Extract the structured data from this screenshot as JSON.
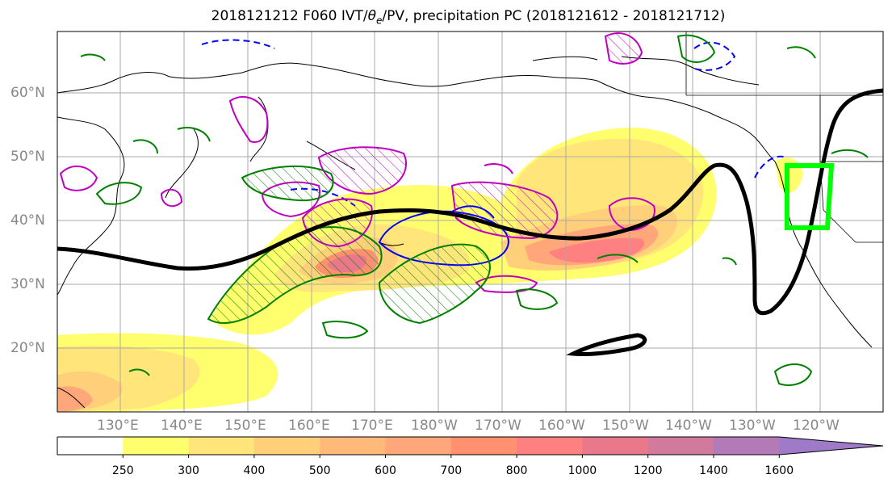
{
  "title": "2018121212 F060 IVT/θe/PV, precipitation PC (2018121612 - 2018121712)",
  "title_parts": {
    "prefix": "2018121212 F060 IVT/",
    "theta": "θ",
    "theta_sub": "e",
    "suffix": "/PV, precipitation PC (2018121612 - 2018121712)"
  },
  "lat_labels": [
    "60°N",
    "50°N",
    "40°N",
    "30°N",
    "20°N"
  ],
  "lon_labels": [
    "130°E",
    "140°E",
    "150°E",
    "160°E",
    "170°E",
    "180°W",
    "170°W",
    "160°W",
    "150°W",
    "140°W",
    "130°W",
    "120°W"
  ],
  "colorbar": {
    "levels": [
      250,
      300,
      400,
      500,
      600,
      700,
      800,
      1000,
      1200,
      1400,
      1600
    ],
    "labels": [
      "250",
      "300",
      "400",
      "500",
      "600",
      "700",
      "800",
      "1000",
      "1200",
      "1400",
      "1600"
    ],
    "colors": [
      "#ffffff",
      "#ffff6e",
      "#ffe57a",
      "#ffcf7a",
      "#ffba7a",
      "#ffa67a",
      "#ff9070",
      "#ff8080",
      "#e9788a",
      "#d17a9e",
      "#b47ab8",
      "#9e7ac8"
    ],
    "extend": "max"
  },
  "map": {
    "projection": "cylindrical",
    "lon_range": [
      "120°E",
      "115°W"
    ],
    "lat_range": [
      "10°N",
      "70°N"
    ],
    "grid": true,
    "land_color": "#ffffff",
    "coast_color": "#000000",
    "target_box_color": "#00ff00",
    "contour_black": "#000000",
    "contour_green": "#008000",
    "contour_blue": "#0000ff",
    "contour_magenta": "#c000c0"
  }
}
